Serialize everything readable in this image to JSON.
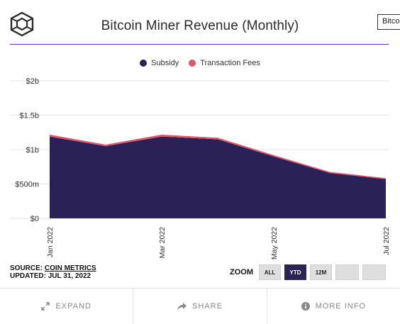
{
  "header": {
    "title": "Bitcoin Miner Revenue (Monthly)",
    "tooltip_fragment": "Bitco",
    "logo_icon": "block-cube-logo-icon",
    "rule_color": "#6b2fbf"
  },
  "legend": [
    {
      "label": "Subsidy",
      "color": "#2a2157"
    },
    {
      "label": "Transaction Fees",
      "color": "#e0576b"
    }
  ],
  "chart_data": {
    "type": "area",
    "stacked": true,
    "x": [
      "2022-01",
      "2022-02",
      "2022-03",
      "2022-04",
      "2022-05",
      "2022-06",
      "2022-07"
    ],
    "x_tick_labels": [
      "Jan 2022",
      "Mar 2022",
      "May 2022",
      "Jul 2022"
    ],
    "x_tick_positions": [
      "2022-01",
      "2022-03",
      "2022-05",
      "2022-07"
    ],
    "y_tick_values": [
      0,
      500000000,
      1000000000,
      1500000000,
      2000000000
    ],
    "y_tick_labels": [
      "$0",
      "$500m",
      "$1b",
      "$1.5b",
      "$2b"
    ],
    "ylim": [
      0,
      2000000000
    ],
    "series": [
      {
        "name": "Subsidy",
        "color": "#2a2157",
        "values": [
          1190000000,
          1050000000,
          1190000000,
          1150000000,
          900000000,
          660000000,
          570000000
        ]
      },
      {
        "name": "Transaction Fees",
        "color": "#e0576b",
        "values": [
          20000000,
          15000000,
          20000000,
          15000000,
          12000000,
          8000000,
          8000000
        ]
      }
    ],
    "grid": true,
    "legend_position": "top-center"
  },
  "source": {
    "label": "SOURCE:",
    "name": "COIN METRICS",
    "updated": "UPDATED: JUL 31, 2022"
  },
  "zoom": {
    "label": "ZOOM",
    "buttons": [
      "ALL",
      "YTD",
      "12M",
      "",
      ""
    ],
    "active": "YTD"
  },
  "footer": {
    "expand": "EXPAND",
    "share": "SHARE",
    "more_info": "MORE INFO",
    "expand_icon": "expand-arrows-icon",
    "share_icon": "share-arrow-icon",
    "info_icon": "info-circle-icon"
  }
}
